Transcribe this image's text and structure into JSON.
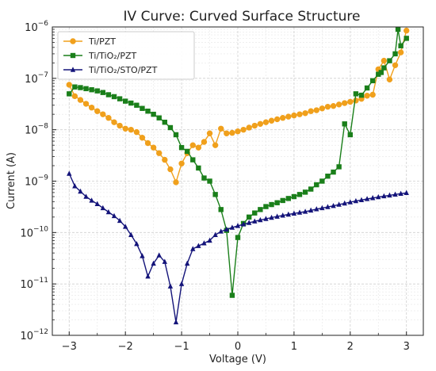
{
  "chart_data": {
    "type": "line",
    "title": "IV Curve: Curved Surface Structure",
    "xlabel": "Voltage (V)",
    "ylabel": "Current (A)",
    "xlim": [
      -3.3,
      3.3
    ],
    "ylim": [
      1e-12,
      1e-06
    ],
    "yscale": "log",
    "grid": true,
    "legend_position": "top-left",
    "x_ticks": [
      -3,
      -2,
      -1,
      0,
      1,
      2,
      3
    ],
    "x_tick_labels": [
      "−3",
      "−2",
      "−1",
      "0",
      "1",
      "2",
      "3"
    ],
    "y_ticks": [
      1e-12,
      1e-11,
      1e-10,
      1e-09,
      1e-08,
      1e-07,
      1e-06
    ],
    "y_tick_labels": [
      {
        "base": "10",
        "exp": "−12"
      },
      {
        "base": "10",
        "exp": "−11"
      },
      {
        "base": "10",
        "exp": "−10"
      },
      {
        "base": "10",
        "exp": "−9"
      },
      {
        "base": "10",
        "exp": "−8"
      },
      {
        "base": "10",
        "exp": "−7"
      },
      {
        "base": "10",
        "exp": "−6"
      }
    ],
    "series": [
      {
        "name": "Ti/PZT",
        "color": "#f0a01c",
        "marker": "circle",
        "points": [
          [
            -3.0,
            7.5e-08
          ],
          [
            -2.9,
            4.5e-08
          ],
          [
            -2.8,
            3.8e-08
          ],
          [
            -2.7,
            3.2e-08
          ],
          [
            -2.6,
            2.7e-08
          ],
          [
            -2.5,
            2.3e-08
          ],
          [
            -2.4,
            2e-08
          ],
          [
            -2.3,
            1.7e-08
          ],
          [
            -2.2,
            1.4e-08
          ],
          [
            -2.1,
            1.2e-08
          ],
          [
            -2.0,
            1.05e-08
          ],
          [
            -1.9,
            1e-08
          ],
          [
            -1.8,
            9e-09
          ],
          [
            -1.7,
            7e-09
          ],
          [
            -1.6,
            5.5e-09
          ],
          [
            -1.5,
            4.5e-09
          ],
          [
            -1.4,
            3.5e-09
          ],
          [
            -1.3,
            2.6e-09
          ],
          [
            -1.2,
            1.7e-09
          ],
          [
            -1.1,
            9.5e-10
          ],
          [
            -1.0,
            2.2e-09
          ],
          [
            -0.9,
            3.5e-09
          ],
          [
            -0.8,
            5e-09
          ],
          [
            -0.7,
            4.5e-09
          ],
          [
            -0.6,
            5.8e-09
          ],
          [
            -0.5,
            8.5e-09
          ],
          [
            -0.4,
            5e-09
          ],
          [
            -0.3,
            1.05e-08
          ],
          [
            -0.2,
            8.5e-09
          ],
          [
            -0.1,
            8.7e-09
          ],
          [
            0.0,
            9.3e-09
          ],
          [
            0.1,
            1e-08
          ],
          [
            0.2,
            1.1e-08
          ],
          [
            0.3,
            1.2e-08
          ],
          [
            0.4,
            1.3e-08
          ],
          [
            0.5,
            1.4e-08
          ],
          [
            0.6,
            1.5e-08
          ],
          [
            0.7,
            1.6e-08
          ],
          [
            0.8,
            1.7e-08
          ],
          [
            0.9,
            1.8e-08
          ],
          [
            1.0,
            1.9e-08
          ],
          [
            1.1,
            2e-08
          ],
          [
            1.2,
            2.1e-08
          ],
          [
            1.3,
            2.3e-08
          ],
          [
            1.4,
            2.4e-08
          ],
          [
            1.5,
            2.6e-08
          ],
          [
            1.6,
            2.8e-08
          ],
          [
            1.7,
            2.9e-08
          ],
          [
            1.8,
            3.1e-08
          ],
          [
            1.9,
            3.3e-08
          ],
          [
            2.0,
            3.5e-08
          ],
          [
            2.1,
            3.7e-08
          ],
          [
            2.2,
            4e-08
          ],
          [
            2.3,
            4.6e-08
          ],
          [
            2.4,
            4.8e-08
          ],
          [
            2.5,
            1.5e-07
          ],
          [
            2.6,
            2.2e-07
          ],
          [
            2.7,
            9.5e-08
          ],
          [
            2.8,
            1.8e-07
          ],
          [
            2.9,
            3.2e-07
          ],
          [
            3.0,
            8.5e-07
          ]
        ]
      },
      {
        "name": "Ti/TiO₂/PZT",
        "color": "#1a7f1a",
        "marker": "square",
        "points": [
          [
            -3.0,
            5e-08
          ],
          [
            -2.9,
            6.8e-08
          ],
          [
            -2.8,
            6.6e-08
          ],
          [
            -2.7,
            6.3e-08
          ],
          [
            -2.6,
            6e-08
          ],
          [
            -2.5,
            5.7e-08
          ],
          [
            -2.4,
            5.3e-08
          ],
          [
            -2.3,
            4.8e-08
          ],
          [
            -2.2,
            4.4e-08
          ],
          [
            -2.1,
            4e-08
          ],
          [
            -2.0,
            3.6e-08
          ],
          [
            -1.9,
            3.3e-08
          ],
          [
            -1.8,
            3e-08
          ],
          [
            -1.7,
            2.6e-08
          ],
          [
            -1.6,
            2.3e-08
          ],
          [
            -1.5,
            2e-08
          ],
          [
            -1.4,
            1.7e-08
          ],
          [
            -1.3,
            1.4e-08
          ],
          [
            -1.2,
            1.1e-08
          ],
          [
            -1.1,
            8e-09
          ],
          [
            -1.0,
            4.5e-09
          ],
          [
            -0.9,
            3.8e-09
          ],
          [
            -0.8,
            2.6e-09
          ],
          [
            -0.7,
            1.8e-09
          ],
          [
            -0.6,
            1.15e-09
          ],
          [
            -0.5,
            1e-09
          ],
          [
            -0.4,
            5.5e-10
          ],
          [
            -0.3,
            2.8e-10
          ],
          [
            -0.2,
            1.1e-10
          ],
          [
            -0.1,
            6e-12
          ],
          [
            0.0,
            8e-11
          ],
          [
            0.1,
            1.5e-10
          ],
          [
            0.2,
            2e-10
          ],
          [
            0.3,
            2.4e-10
          ],
          [
            0.4,
            2.8e-10
          ],
          [
            0.5,
            3.2e-10
          ],
          [
            0.6,
            3.5e-10
          ],
          [
            0.7,
            3.8e-10
          ],
          [
            0.8,
            4.2e-10
          ],
          [
            0.9,
            4.6e-10
          ],
          [
            1.0,
            5e-10
          ],
          [
            1.1,
            5.5e-10
          ],
          [
            1.2,
            6.1e-10
          ],
          [
            1.3,
            7e-10
          ],
          [
            1.4,
            8.5e-10
          ],
          [
            1.5,
            1e-09
          ],
          [
            1.6,
            1.25e-09
          ],
          [
            1.7,
            1.5e-09
          ],
          [
            1.8,
            1.9e-09
          ],
          [
            1.9,
            1.3e-08
          ],
          [
            2.0,
            8e-09
          ],
          [
            2.1,
            5e-08
          ],
          [
            2.2,
            4.7e-08
          ],
          [
            2.3,
            6.5e-08
          ],
          [
            2.4,
            9e-08
          ],
          [
            2.5,
            1.2e-07
          ],
          [
            2.6,
            1.6e-07
          ],
          [
            2.7,
            2.2e-07
          ],
          [
            2.8,
            3e-07
          ],
          [
            2.9,
            4.3e-07
          ],
          [
            3.0,
            6e-07
          ],
          [
            2.55,
            1.3e-07
          ],
          [
            2.85,
            9e-07
          ]
        ]
      },
      {
        "name": "Ti/TiO₂/STO/PZT",
        "color": "#14147a",
        "marker": "triangle",
        "points": [
          [
            -3.0,
            1.4e-09
          ],
          [
            -2.9,
            8e-10
          ],
          [
            -2.8,
            6.3e-10
          ],
          [
            -2.7,
            5e-10
          ],
          [
            -2.6,
            4.2e-10
          ],
          [
            -2.5,
            3.6e-10
          ],
          [
            -2.4,
            3e-10
          ],
          [
            -2.3,
            2.5e-10
          ],
          [
            -2.2,
            2.1e-10
          ],
          [
            -2.1,
            1.7e-10
          ],
          [
            -2.0,
            1.3e-10
          ],
          [
            -1.9,
            9e-11
          ],
          [
            -1.8,
            6e-11
          ],
          [
            -1.7,
            3.5e-11
          ],
          [
            -1.6,
            1.4e-11
          ],
          [
            -1.5,
            2.5e-11
          ],
          [
            -1.4,
            3.6e-11
          ],
          [
            -1.3,
            2.7e-11
          ],
          [
            -1.2,
            9e-12
          ],
          [
            -1.1,
            1.8e-12
          ],
          [
            -1.0,
            1e-11
          ],
          [
            -0.9,
            2.5e-11
          ],
          [
            -0.8,
            4.8e-11
          ],
          [
            -0.7,
            5.5e-11
          ],
          [
            -0.6,
            6.2e-11
          ],
          [
            -0.5,
            7e-11
          ],
          [
            -0.4,
            9e-11
          ],
          [
            -0.3,
            1.05e-10
          ],
          [
            -0.2,
            1.15e-10
          ],
          [
            -0.1,
            1.25e-10
          ],
          [
            0.0,
            1.35e-10
          ],
          [
            0.1,
            1.45e-10
          ],
          [
            0.2,
            1.55e-10
          ],
          [
            0.3,
            1.65e-10
          ],
          [
            0.4,
            1.75e-10
          ],
          [
            0.5,
            1.85e-10
          ],
          [
            0.6,
            1.95e-10
          ],
          [
            0.7,
            2.05e-10
          ],
          [
            0.8,
            2.15e-10
          ],
          [
            0.9,
            2.25e-10
          ],
          [
            1.0,
            2.35e-10
          ],
          [
            1.1,
            2.45e-10
          ],
          [
            1.2,
            2.55e-10
          ],
          [
            1.3,
            2.7e-10
          ],
          [
            1.4,
            2.85e-10
          ],
          [
            1.5,
            3e-10
          ],
          [
            1.6,
            3.15e-10
          ],
          [
            1.7,
            3.3e-10
          ],
          [
            1.8,
            3.5e-10
          ],
          [
            1.9,
            3.7e-10
          ],
          [
            2.0,
            3.9e-10
          ],
          [
            2.1,
            4.1e-10
          ],
          [
            2.2,
            4.3e-10
          ],
          [
            2.3,
            4.5e-10
          ],
          [
            2.4,
            4.7e-10
          ],
          [
            2.5,
            4.9e-10
          ],
          [
            2.6,
            5.1e-10
          ],
          [
            2.7,
            5.3e-10
          ],
          [
            2.8,
            5.5e-10
          ],
          [
            2.9,
            5.7e-10
          ],
          [
            3.0,
            5.9e-10
          ]
        ]
      }
    ]
  }
}
